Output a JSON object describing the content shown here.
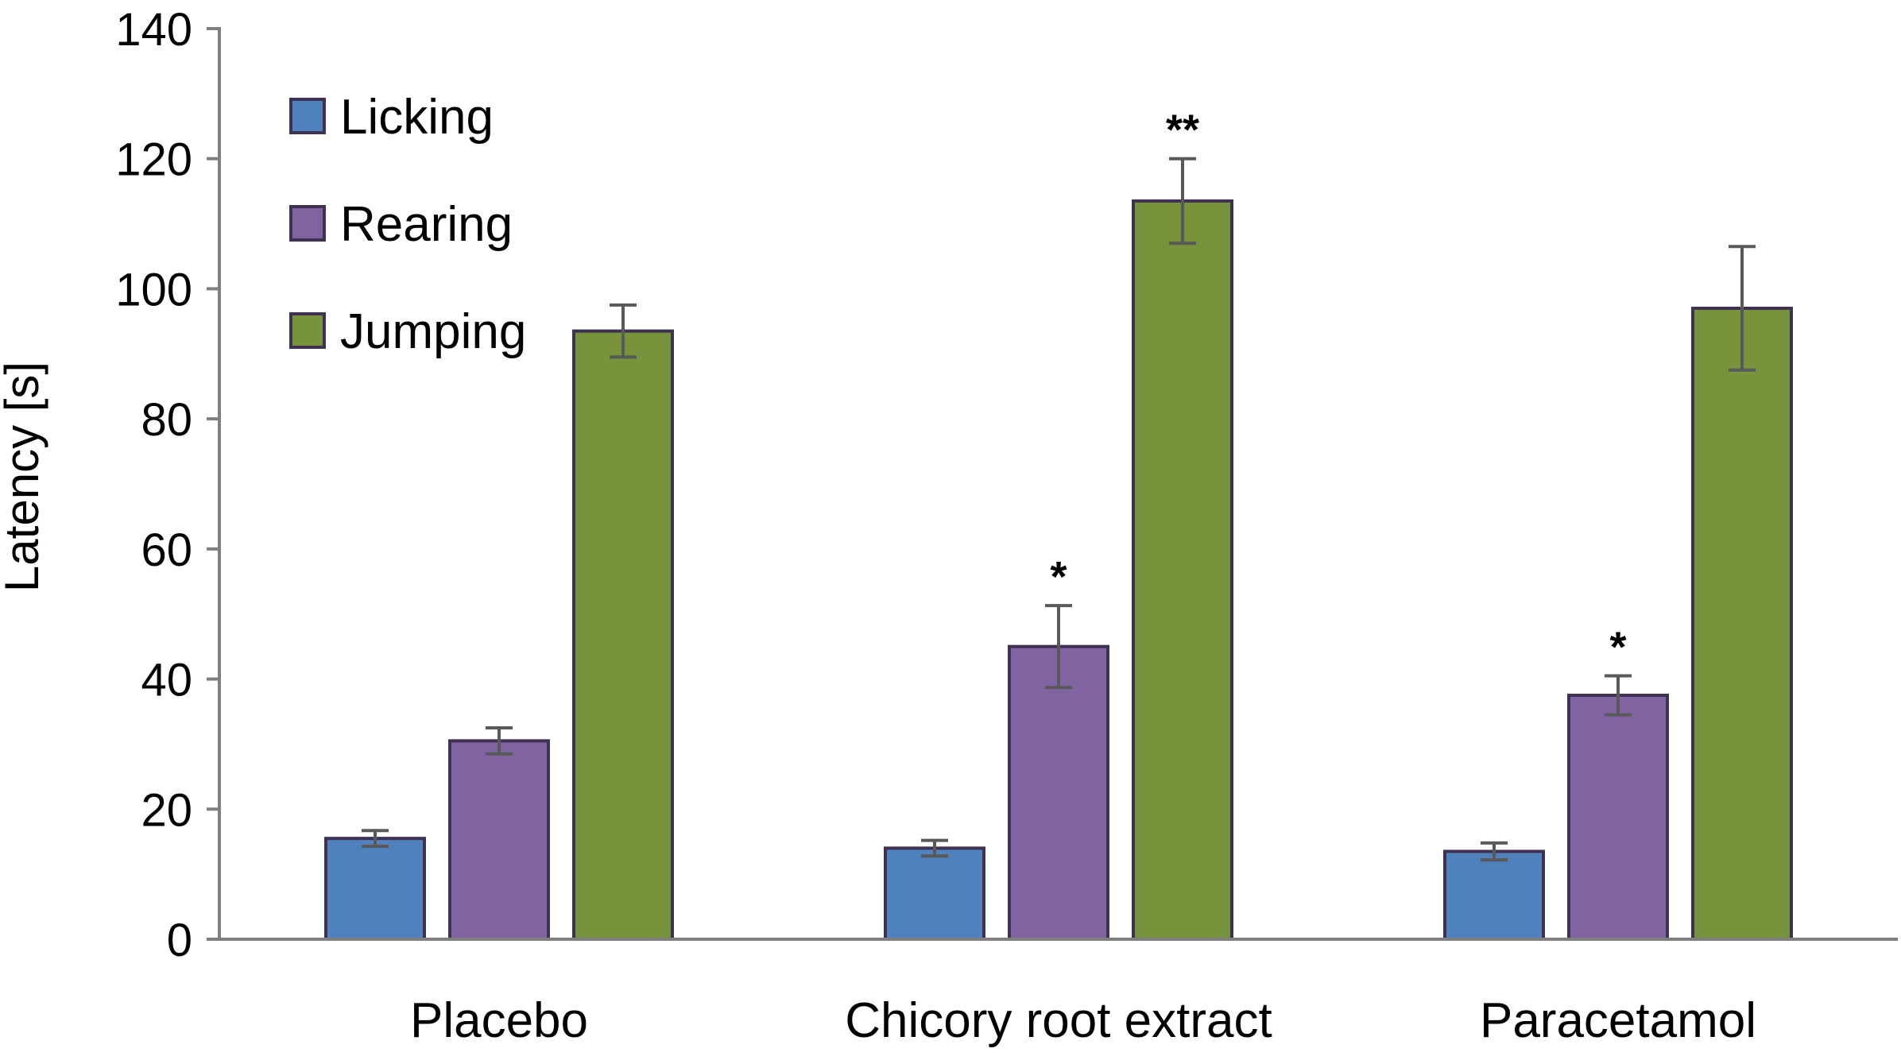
{
  "chart_data": {
    "type": "bar",
    "title": "",
    "xlabel": "",
    "ylabel": "Latency [s]",
    "ylim": [
      0,
      140
    ],
    "yticks": [
      0,
      20,
      40,
      60,
      80,
      100,
      120,
      140
    ],
    "grid": false,
    "legend_position": "top-left",
    "categories": [
      "Placebo",
      "Chicory root extract",
      "Paracetamol"
    ],
    "series": [
      {
        "name": "Licking",
        "color": "#4f81bd",
        "values": [
          15.5,
          14,
          13.5
        ],
        "errors": [
          1.2,
          1.2,
          1.3
        ],
        "significance": [
          "",
          "",
          ""
        ]
      },
      {
        "name": "Rearing",
        "color": "#8064a2",
        "values": [
          30.5,
          45,
          37.5
        ],
        "errors": [
          2.0,
          6.3,
          3.0
        ],
        "significance": [
          "",
          "*",
          "*"
        ]
      },
      {
        "name": "Jumping",
        "color": "#77933c",
        "values": [
          93.5,
          113.5,
          97
        ],
        "errors": [
          4.0,
          6.5,
          9.5
        ],
        "significance": [
          "",
          "**",
          ""
        ]
      }
    ],
    "colors": {
      "bar_stroke": "#3f3151",
      "error_bar": "#595959",
      "axis": "#7f7f7f",
      "text": "#000000"
    }
  }
}
